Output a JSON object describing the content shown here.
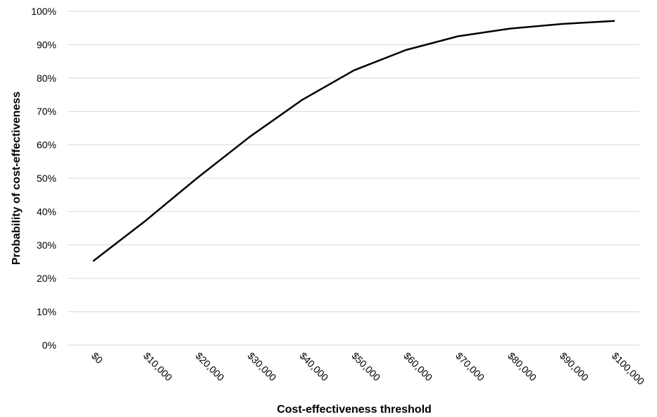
{
  "chart_data": {
    "type": "line",
    "title": "",
    "xlabel": "Cost-effectiveness threshold",
    "ylabel": "Probability of cost-effectiveness",
    "x": [
      "$0",
      "$10,000",
      "$20,000",
      "$30,000",
      "$40,000",
      "$50,000",
      "$60,000",
      "$70,000",
      "$80,000",
      "$90,000",
      "$100,000"
    ],
    "x_values": [
      0,
      10000,
      20000,
      30000,
      40000,
      50000,
      60000,
      70000,
      80000,
      90000,
      100000
    ],
    "series": [
      {
        "values": [
          0.253,
          0.373,
          0.502,
          0.624,
          0.734,
          0.823,
          0.884,
          0.925,
          0.948,
          0.962,
          0.971
        ]
      }
    ],
    "ylim": [
      0,
      1
    ],
    "yticks": [
      0,
      0.1,
      0.2,
      0.3,
      0.4,
      0.5,
      0.6,
      0.7,
      0.8,
      0.9,
      1.0
    ],
    "ytick_labels": [
      "0%",
      "10%",
      "20%",
      "30%",
      "40%",
      "50%",
      "60%",
      "70%",
      "80%",
      "90%",
      "100%"
    ],
    "grid": true,
    "legend": "none",
    "colors": {
      "line": "#000000",
      "grid": "#d9d9d9"
    }
  }
}
